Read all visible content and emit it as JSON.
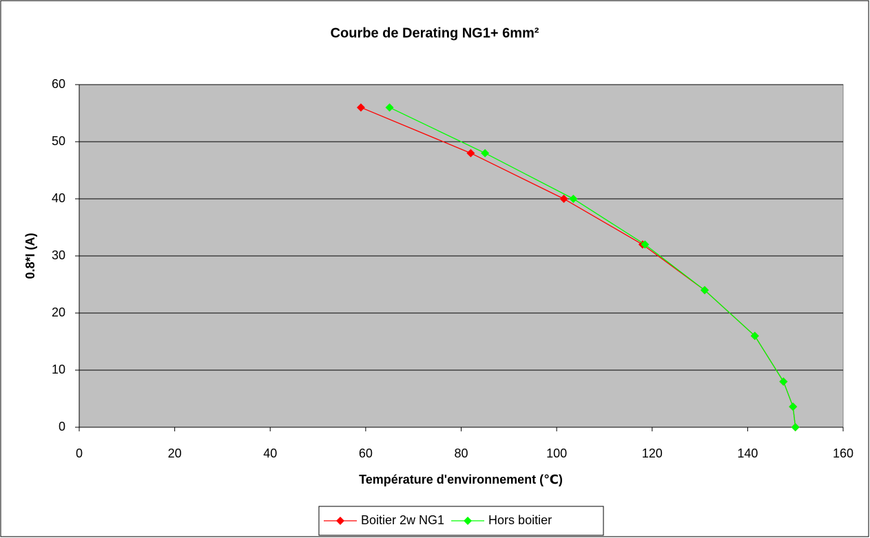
{
  "chart_data": {
    "type": "line",
    "title": "Courbe de Derating NG1+ 6mm²",
    "xlabel": "Température d'environnement (℃)",
    "ylabel": "0.8*I (A)",
    "xlim": [
      0,
      160
    ],
    "xticks": [
      0,
      20,
      40,
      60,
      80,
      100,
      120,
      140,
      160
    ],
    "ylim": [
      0,
      60
    ],
    "yticks": [
      0,
      10,
      20,
      30,
      40,
      50,
      60
    ],
    "grid": true,
    "legend": "bottom",
    "series": [
      {
        "name": "Boitier 2w NG1",
        "color": "#ff0000",
        "x": [
          59,
          82,
          101.5,
          118,
          131,
          141.5,
          147.5,
          149.5,
          150
        ],
        "values": [
          56,
          48,
          40,
          32,
          24,
          16,
          8,
          3.6,
          0
        ]
      },
      {
        "name": "Hors boitier",
        "color": "#00ff00",
        "x": [
          65,
          85,
          103.5,
          118.5,
          131,
          141.5,
          147.5,
          149.5,
          150
        ],
        "values": [
          56,
          48,
          40,
          32,
          24,
          16,
          8,
          3.6,
          0
        ]
      }
    ]
  }
}
